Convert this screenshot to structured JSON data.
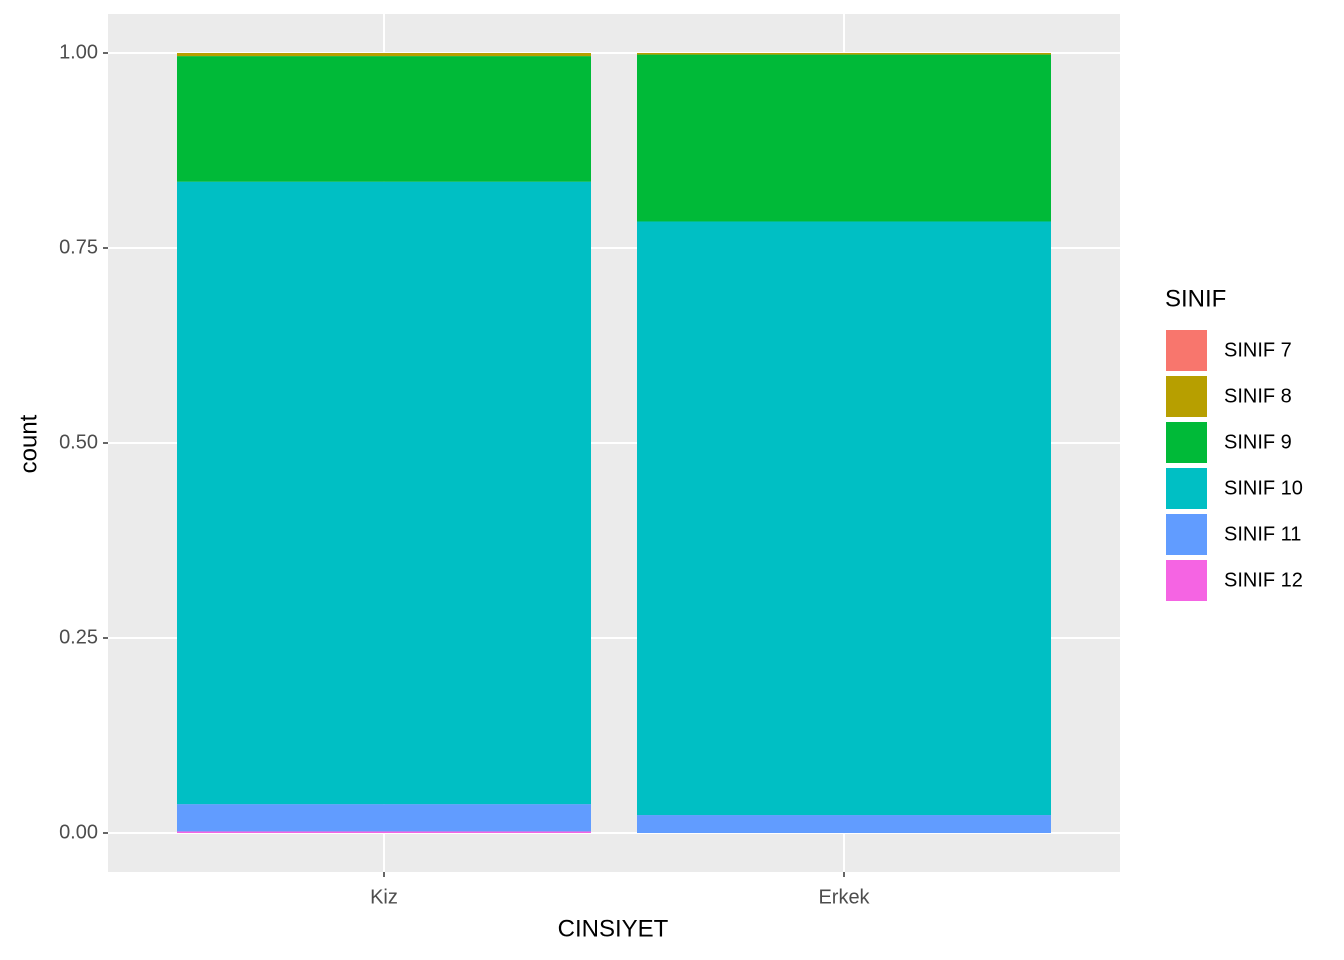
{
  "chart_data": {
    "type": "stacked-bar",
    "x_label": "CINSIYET",
    "y_label": "count",
    "legend_title": "SINIF",
    "categories": [
      "Kiz",
      "Erkek"
    ],
    "series": [
      {
        "name": "SINIF 7",
        "color": "#F8766D",
        "values": [
          0,
          0
        ]
      },
      {
        "name": "SINIF 8",
        "color": "#B79F00",
        "values": [
          0.004,
          0.002
        ]
      },
      {
        "name": "SINIF 9",
        "color": "#00BA38",
        "values": [
          0.161,
          0.214
        ]
      },
      {
        "name": "SINIF 10",
        "color": "#00BFC4",
        "values": [
          0.798,
          0.761
        ]
      },
      {
        "name": "SINIF 11",
        "color": "#619CFF",
        "values": [
          0.035,
          0.023
        ]
      },
      {
        "name": "SINIF 12",
        "color": "#F564E3",
        "values": [
          0.002,
          0
        ]
      }
    ],
    "ylim": [
      -0.05,
      1.05
    ],
    "yticks": [
      {
        "value": 0,
        "label": "0.00"
      },
      {
        "value": 0.25,
        "label": "0.25"
      },
      {
        "value": 0.5,
        "label": "0.50"
      },
      {
        "value": 0.75,
        "label": "0.75"
      },
      {
        "value": 1,
        "label": "1.00"
      }
    ],
    "grid": true,
    "legend_position": "right"
  }
}
